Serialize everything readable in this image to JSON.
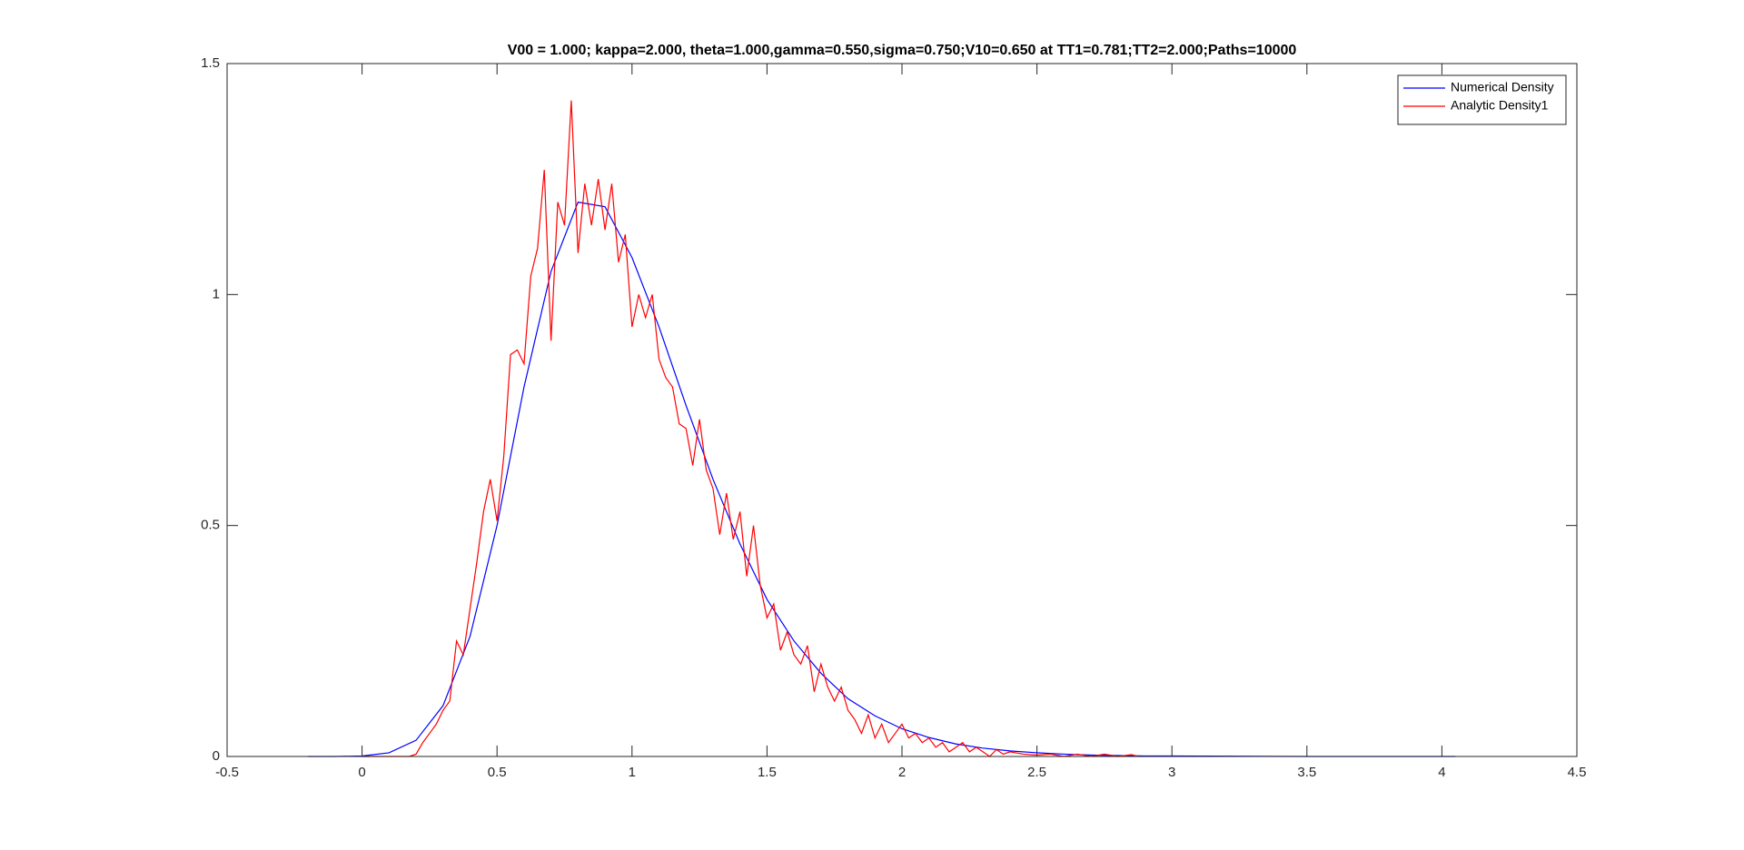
{
  "chart_data": {
    "type": "line",
    "title": "V00 = 1.000; kappa=2.000, theta=1.000,gamma=0.550,sigma=0.750;V10=0.650 at TT1=0.781;TT2=2.000;Paths=10000",
    "xlim": [
      -0.5,
      4.5
    ],
    "ylim": [
      0,
      1.5
    ],
    "xticks": [
      -0.5,
      0,
      0.5,
      1,
      1.5,
      2,
      2.5,
      3,
      3.5,
      4,
      4.5
    ],
    "yticks": [
      0,
      0.5,
      1,
      1.5
    ],
    "grid": false,
    "legend": "top-right",
    "series": [
      {
        "name": "Numerical Density",
        "color": "#0000ff",
        "x": [
          -0.2,
          -0.1,
          0,
          0.1,
          0.2,
          0.3,
          0.4,
          0.5,
          0.6,
          0.7,
          0.8,
          0.9,
          1.0,
          1.1,
          1.2,
          1.3,
          1.4,
          1.5,
          1.6,
          1.7,
          1.8,
          1.9,
          2.0,
          2.1,
          2.2,
          2.3,
          2.4,
          2.5,
          2.6,
          2.7,
          2.8,
          2.9,
          3.0,
          3.5,
          4.05
        ],
        "values": [
          0,
          0,
          0.001,
          0.008,
          0.035,
          0.11,
          0.26,
          0.5,
          0.8,
          1.05,
          1.2,
          1.19,
          1.08,
          0.93,
          0.76,
          0.6,
          0.46,
          0.34,
          0.25,
          0.18,
          0.125,
          0.088,
          0.06,
          0.041,
          0.027,
          0.018,
          0.012,
          0.008,
          0.005,
          0.003,
          0.002,
          0.001,
          0.001,
          0,
          0
        ]
      },
      {
        "name": "Analytic Density1",
        "color": "#ff0000",
        "x": [
          0,
          0.025,
          0.05,
          0.075,
          0.1,
          0.125,
          0.15,
          0.175,
          0.2,
          0.225,
          0.25,
          0.275,
          0.3,
          0.325,
          0.35,
          0.375,
          0.4,
          0.425,
          0.45,
          0.475,
          0.5,
          0.525,
          0.55,
          0.575,
          0.6,
          0.625,
          0.65,
          0.675,
          0.7,
          0.725,
          0.75,
          0.775,
          0.8,
          0.825,
          0.85,
          0.875,
          0.9,
          0.925,
          0.95,
          0.975,
          1.0,
          1.025,
          1.05,
          1.075,
          1.1,
          1.125,
          1.15,
          1.175,
          1.2,
          1.225,
          1.25,
          1.275,
          1.3,
          1.325,
          1.35,
          1.375,
          1.4,
          1.425,
          1.45,
          1.475,
          1.5,
          1.525,
          1.55,
          1.575,
          1.6,
          1.625,
          1.65,
          1.675,
          1.7,
          1.725,
          1.75,
          1.775,
          1.8,
          1.825,
          1.85,
          1.875,
          1.9,
          1.925,
          1.95,
          1.975,
          2.0,
          2.025,
          2.05,
          2.075,
          2.1,
          2.125,
          2.15,
          2.175,
          2.2,
          2.225,
          2.25,
          2.275,
          2.3,
          2.325,
          2.35,
          2.375,
          2.4,
          2.45,
          2.5,
          2.55,
          2.6,
          2.65,
          2.7,
          2.75,
          2.8,
          2.85,
          2.875
        ],
        "values": [
          0,
          0,
          0,
          0,
          0,
          0,
          0,
          0,
          0.005,
          0.03,
          0.05,
          0.07,
          0.1,
          0.12,
          0.25,
          0.22,
          0.32,
          0.42,
          0.53,
          0.6,
          0.51,
          0.65,
          0.87,
          0.88,
          0.85,
          1.04,
          1.1,
          1.27,
          0.9,
          1.2,
          1.15,
          1.42,
          1.09,
          1.24,
          1.15,
          1.25,
          1.14,
          1.24,
          1.07,
          1.13,
          0.93,
          1.0,
          0.95,
          1.0,
          0.86,
          0.82,
          0.8,
          0.72,
          0.71,
          0.63,
          0.73,
          0.62,
          0.58,
          0.48,
          0.57,
          0.47,
          0.53,
          0.39,
          0.5,
          0.37,
          0.3,
          0.33,
          0.23,
          0.27,
          0.22,
          0.2,
          0.24,
          0.14,
          0.2,
          0.15,
          0.12,
          0.15,
          0.1,
          0.08,
          0.05,
          0.09,
          0.04,
          0.07,
          0.03,
          0.05,
          0.07,
          0.04,
          0.05,
          0.03,
          0.04,
          0.02,
          0.03,
          0.01,
          0.02,
          0.03,
          0.01,
          0.02,
          0.01,
          0,
          0.015,
          0.005,
          0.01,
          0.005,
          0.003,
          0.005,
          0,
          0.005,
          0,
          0.005,
          0,
          0.004,
          0
        ]
      }
    ]
  }
}
